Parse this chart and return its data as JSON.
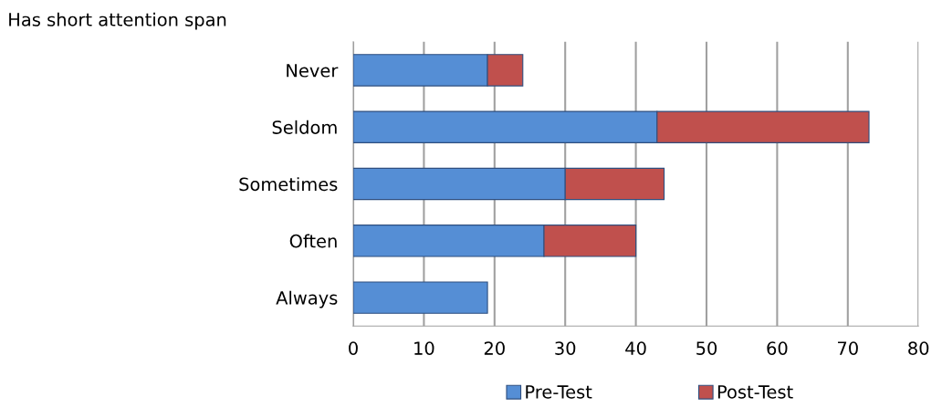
{
  "chart_data": {
    "type": "bar",
    "orientation": "horizontal",
    "stacked": true,
    "title": "Has short attention span",
    "categories": [
      "Never",
      "Seldom",
      "Sometimes",
      "Often",
      "Always"
    ],
    "series": [
      {
        "name": "Pre-Test",
        "color": "#558ed5",
        "values": [
          19,
          43,
          30,
          27,
          19
        ]
      },
      {
        "name": "Post-Test",
        "color": "#c0504d",
        "values": [
          5,
          30,
          14,
          13,
          null
        ]
      }
    ],
    "xlim": [
      0,
      80
    ],
    "xticks": [
      0,
      10,
      20,
      30,
      40,
      50,
      60,
      70,
      80
    ],
    "grid": "x",
    "legend": "bottom"
  }
}
